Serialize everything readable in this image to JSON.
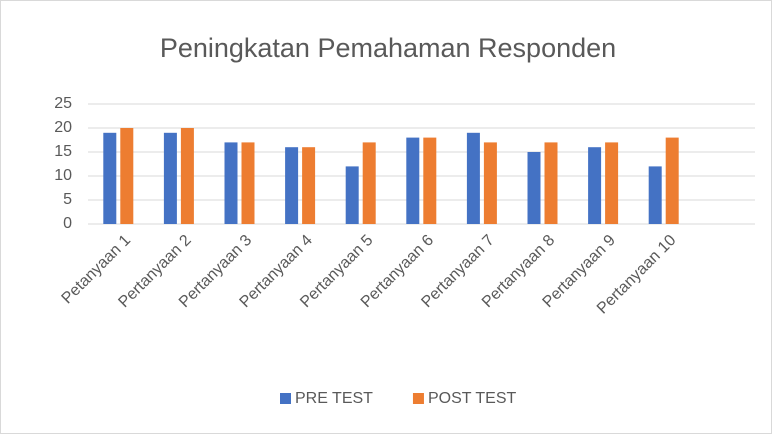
{
  "chart_data": {
    "type": "bar",
    "title": "Peningkatan  Pemahaman Responden",
    "categories": [
      "Petanyaan 1",
      "Pertanyaan 2",
      "Pertanyaan 3",
      "Pertanyaan 4",
      "Pertanyaan 5",
      "Pertanyaan 6",
      "Pertanyaan 7",
      "Pertanyaan 8",
      "Pertanyaan 9",
      "Pertanyaan 10"
    ],
    "series": [
      {
        "name": "PRE TEST",
        "color": "#4472c4",
        "values": [
          19,
          19,
          17,
          16,
          12,
          18,
          19,
          15,
          16,
          12
        ]
      },
      {
        "name": "POST TEST",
        "color": "#ed7d31",
        "values": [
          20,
          20,
          17,
          16,
          17,
          18,
          17,
          17,
          17,
          18
        ]
      }
    ],
    "ylim": [
      0,
      25
    ],
    "yticks": [
      0,
      5,
      10,
      15,
      20,
      25
    ],
    "grid": true,
    "legend": "bottom"
  }
}
